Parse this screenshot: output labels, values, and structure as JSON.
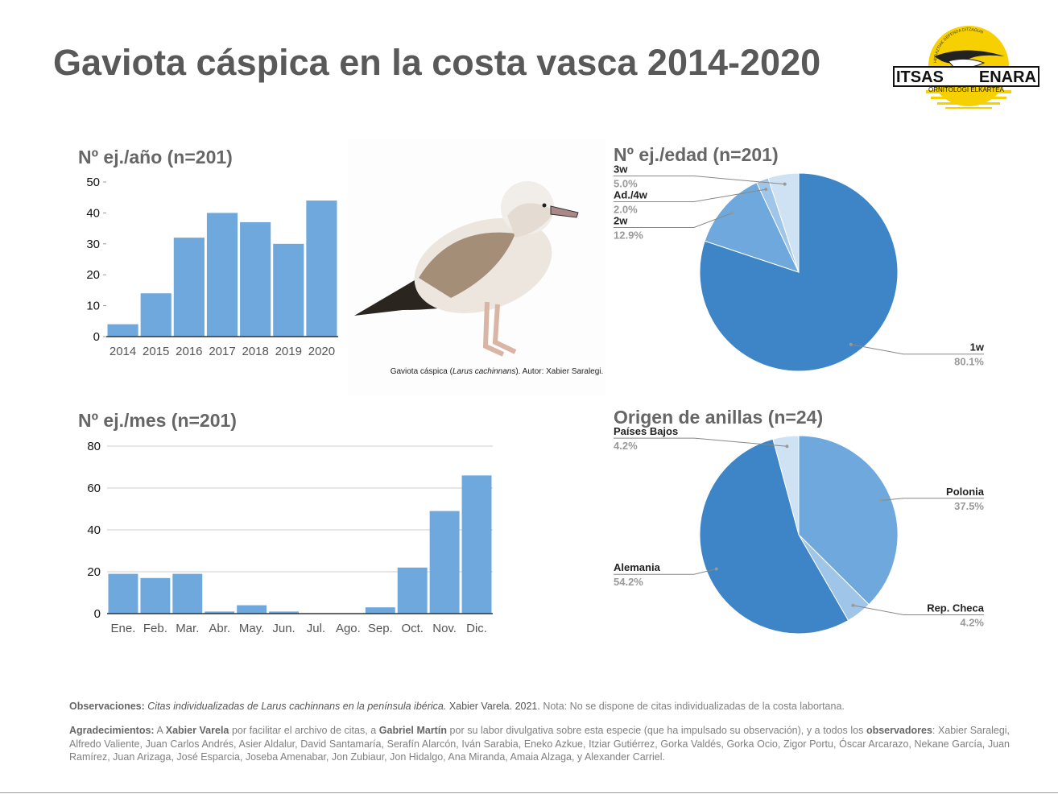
{
  "title": "Gaviota cáspica en la costa vasca 2014-2020",
  "logo": {
    "name_left": "ITSAS",
    "name_right": "ENARA",
    "subtitle": "ORNITOLOGI ELKARTEA",
    "motto": "HEGAZTIAK DEFENDA DITZAGUN"
  },
  "photo_caption": [
    "Gaviota cáspica (",
    "Larus cachinnans",
    "). Autor: Xabier Saralegi."
  ],
  "chart_data": [
    {
      "type": "bar",
      "title": "Nº ej./año (n=201)",
      "categories": [
        "2014",
        "2015",
        "2016",
        "2017",
        "2018",
        "2019",
        "2020"
      ],
      "values": [
        4,
        14,
        32,
        40,
        37,
        30,
        44
      ],
      "color": "#6fa8dc",
      "ylim": [
        0,
        50
      ],
      "yticks": [
        0,
        10,
        20,
        30,
        40,
        50
      ],
      "grid": false
    },
    {
      "type": "bar",
      "title": "Nº ej./mes (n=201)",
      "categories": [
        "Ene.",
        "Feb.",
        "Mar.",
        "Abr.",
        "May.",
        "Jun.",
        "Jul.",
        "Ago.",
        "Sep.",
        "Oct.",
        "Nov.",
        "Dic."
      ],
      "values": [
        19,
        17,
        19,
        1,
        4,
        1,
        0,
        0,
        3,
        22,
        49,
        66
      ],
      "color": "#6fa8dc",
      "ylim": [
        0,
        80
      ],
      "yticks": [
        0,
        20,
        40,
        60,
        80
      ],
      "grid": true
    },
    {
      "type": "pie",
      "title": "Nº ej./edad (n=201)",
      "categories": [
        "1w",
        "2w",
        "Ad./4w",
        "3w"
      ],
      "values": [
        80.1,
        12.9,
        2.0,
        5.0
      ],
      "value_labels": [
        "80.1%",
        "12.9%",
        "2.0%",
        "5.0%"
      ],
      "colors": [
        "#3d85c6",
        "#6fa8dc",
        "#9fc5e8",
        "#cfe2f3"
      ]
    },
    {
      "type": "pie",
      "title": "Origen de anillas (n=24)",
      "categories": [
        "Polonia",
        "Rep. Checa",
        "Alemania",
        "Países Bajos"
      ],
      "values": [
        37.5,
        4.2,
        54.2,
        4.2
      ],
      "value_labels": [
        "37.5%",
        "4.2%",
        "54.2%",
        "4.2%"
      ],
      "colors": [
        "#6fa8dc",
        "#9fc5e8",
        "#3d85c6",
        "#cfe2f3"
      ]
    }
  ],
  "footer": {
    "observations": [
      "Observaciones:",
      " Citas individualizadas de Larus cachinnans en la península ibérica.",
      " Xabier Varela. 2021.",
      " Nota: No se dispone de citas individualizadas de la costa labortana."
    ],
    "acknowledgements": [
      "Agradecimientos:",
      " A ",
      "Xabier Varela",
      " por facilitar el archivo de citas, a ",
      "Gabriel Martín",
      " por su labor divulgativa sobre esta especie (que ha impulsado su observación), y a todos los ",
      "observadores",
      ": Xabier Saralegi, Alfredo Valiente, Juan Carlos Andrés, Asier Aldalur, David Santamaría, Serafín Alarcón, Iván Sarabia, Eneko Azkue, Itziar Gutiérrez, Gorka Valdés, Gorka Ocio, Zigor Portu, Óscar Arcarazo, Nekane García, Juan Ramírez, Juan Arizaga, José Esparcia, Joseba Amenabar, Jon Zubiaur, Jon Hidalgo, Ana Miranda, Amaia Alzaga, y Alexander Carriel."
    ]
  }
}
